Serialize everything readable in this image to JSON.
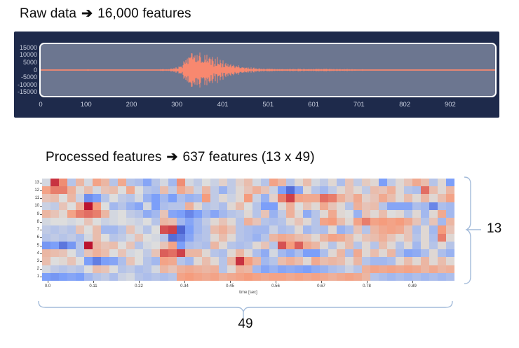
{
  "raw_section": {
    "title_prefix": "Raw data",
    "arrow": "➔",
    "title_suffix": "16,000 features"
  },
  "processed_section": {
    "title_prefix": "Processed features",
    "arrow": "➔",
    "title_suffix": "637 features (13 x 49)"
  },
  "annotations": {
    "rows_count_label": "13",
    "cols_count_label": "49",
    "brace_color": "#a3bbda"
  },
  "chart_data": [
    {
      "type": "line",
      "name": "raw-audio-waveform",
      "x_ticks": [
        0,
        100,
        200,
        300,
        401,
        501,
        601,
        701,
        802,
        902
      ],
      "x_range": [
        0,
        1001
      ],
      "y_ticks": [
        15000,
        10000,
        5000,
        0,
        -5000,
        -10000,
        -15000
      ],
      "y_range": [
        -17500,
        17500
      ],
      "line_color": "#f8886f",
      "plot_bg": "#6c7690",
      "panel_bg": "#1e2a4b",
      "tick_text_color": "#c9cfdf",
      "grid": false,
      "envelope": [
        [
          0,
          260
        ],
        [
          60,
          260
        ],
        [
          95,
          300
        ],
        [
          103,
          750
        ],
        [
          112,
          320
        ],
        [
          160,
          280
        ],
        [
          210,
          300
        ],
        [
          258,
          340
        ],
        [
          270,
          900
        ],
        [
          280,
          520
        ],
        [
          292,
          1600
        ],
        [
          302,
          2400
        ],
        [
          312,
          4800
        ],
        [
          320,
          8500
        ],
        [
          328,
          14500
        ],
        [
          336,
          15800
        ],
        [
          344,
          12500
        ],
        [
          352,
          14500
        ],
        [
          360,
          10500
        ],
        [
          368,
          12000
        ],
        [
          378,
          9000
        ],
        [
          388,
          9800
        ],
        [
          398,
          7200
        ],
        [
          408,
          6200
        ],
        [
          418,
          5600
        ],
        [
          428,
          4300
        ],
        [
          438,
          3400
        ],
        [
          448,
          2700
        ],
        [
          458,
          2200
        ],
        [
          468,
          1800
        ],
        [
          478,
          1500
        ],
        [
          490,
          1250
        ],
        [
          505,
          1050
        ],
        [
          525,
          900
        ],
        [
          545,
          820
        ],
        [
          565,
          950
        ],
        [
          580,
          1150
        ],
        [
          592,
          850
        ],
        [
          605,
          1050
        ],
        [
          618,
          900
        ],
        [
          632,
          1020
        ],
        [
          648,
          820
        ],
        [
          662,
          940
        ],
        [
          678,
          720
        ],
        [
          695,
          620
        ],
        [
          715,
          520
        ],
        [
          735,
          470
        ],
        [
          760,
          430
        ],
        [
          800,
          410
        ],
        [
          850,
          390
        ],
        [
          900,
          390
        ],
        [
          950,
          370
        ],
        [
          1000,
          360
        ]
      ]
    },
    {
      "type": "heatmap",
      "name": "mfcc-features-heatmap",
      "colormap": "coolwarm",
      "xlabel": "time [sec]",
      "x_tick_labels": [
        "0.0",
        "0.11",
        "0.22",
        "0.34",
        "0.45",
        "0.56",
        "0.67",
        "0.78",
        "0.89"
      ],
      "row_labels_top_to_bottom": [
        "13",
        "12",
        "11",
        "10",
        "9",
        "8",
        "7",
        "6",
        "5",
        "4",
        "3",
        "2",
        "1"
      ],
      "value_range": [
        -1,
        1
      ],
      "values": [
        [
          -0.05,
          0.85,
          0.55,
          -0.2,
          0.3,
          -0.05,
          0.45,
          0.3,
          -0.2,
          0.4,
          -0.2,
          -0.25,
          -0.45,
          -0.2,
          -0.05,
          -0.3,
          0.55,
          -0.05,
          -0.15,
          0,
          -0.1,
          0.1,
          -0.15,
          0.1,
          0.25,
          -0.05,
          -0.2,
          0.45,
          0.3,
          -0.2,
          0.05,
          0.25,
          -0.05,
          -0.15,
          0.05,
          -0.25,
          0.2,
          -0.15,
          0.15,
          0.05,
          -0.5,
          -0.15,
          0.05,
          0.2,
          0.4,
          0.25,
          -0.2,
          0.05,
          -0.5
        ],
        [
          0.45,
          0.6,
          0.6,
          0.35,
          0.05,
          0.25,
          -0.05,
          0.2,
          0.25,
          0,
          0.4,
          0,
          -0.2,
          -0.25,
          0.25,
          -0.15,
          0.4,
          0.25,
          -0.1,
          0.3,
          -0.15,
          -0.35,
          -0.15,
          0.05,
          0.2,
          0.35,
          0.2,
          -0.1,
          -0.5,
          -0.8,
          -0.45,
          0.05,
          -0.2,
          -0.3,
          -0.15,
          0.05,
          0.2,
          0.05,
          -0.15,
          0.25,
          0.2,
          0.35,
          0.05,
          -0.2,
          -0.25,
          0.65,
          0.25,
          0.05,
          0.3
        ],
        [
          0.2,
          0.25,
          0,
          0.3,
          -0.1,
          -0.6,
          -0.5,
          -0.2,
          0,
          -0.15,
          -0.2,
          -0.05,
          -0.35,
          -0.5,
          -0.3,
          -0.5,
          -0.25,
          -0.35,
          -0.3,
          0.5,
          -0.15,
          0.05,
          -0.1,
          0.05,
          0.5,
          -0.1,
          -0.35,
          0.1,
          0.6,
          0.8,
          0.45,
          0.4,
          0.4,
          0.65,
          0.6,
          0.35,
          0.2,
          0.4,
          0.1,
          0.2,
          0.4,
          0.25,
          0.05,
          0.25,
          0.05,
          0.3,
          0.05,
          0.25,
          0.45
        ],
        [
          -0.1,
          -0.15,
          0.2,
          0,
          0.35,
          0.95,
          0.5,
          0,
          -0.3,
          -0.2,
          -0.35,
          -0.45,
          -0.05,
          -0.5,
          -0.25,
          -0.2,
          -0.2,
          0.35,
          0.05,
          -0.2,
          -0.15,
          -0.25,
          0.05,
          0.25,
          0,
          -0.2,
          -0.5,
          -0.5,
          0.05,
          0.35,
          0,
          0.2,
          0.05,
          0.4,
          0.2,
          0.05,
          -0.2,
          0.35,
          0.2,
          0.25,
          -0.2,
          -0.45,
          -0.45,
          -0.45,
          -0.25,
          -0.3,
          -0.65,
          -0.25,
          -0.3
        ],
        [
          0.3,
          0.2,
          0.05,
          0.45,
          0.6,
          0.65,
          0.6,
          0.3,
          -0.05,
          0,
          -0.15,
          -0.2,
          -0.4,
          -0.3,
          0.2,
          -0.45,
          -0.5,
          -0.65,
          -0.5,
          -0.3,
          -0.45,
          -0.3,
          -0.2,
          -0.15,
          0.05,
          -0.2,
          0.2,
          -0.35,
          -0.15,
          0.35,
          0.05,
          -0.4,
          -0.2,
          0.05,
          0.4,
          0.05,
          0,
          -0.35,
          0.2,
          0.05,
          0.25,
          0,
          0.05,
          -0.2,
          0.05,
          -0.3,
          0.05,
          0.4,
          -0.3
        ],
        [
          -0.05,
          0,
          0,
          -0.05,
          0,
          0.2,
          0,
          -0.1,
          -0.05,
          0,
          -0.05,
          -0.1,
          0,
          -0.2,
          0.3,
          0.25,
          -0.3,
          -0.45,
          -0.3,
          -0.15,
          0.05,
          0.2,
          0.05,
          -0.2,
          0.35,
          0.2,
          -0.2,
          -0.25,
          -0.2,
          0.05,
          0.2,
          0.05,
          -0.2,
          0.45,
          0.5,
          0.25,
          0.05,
          0.45,
          0.6,
          0.45,
          0.5,
          0.45,
          0.5,
          0.4,
          0.2,
          -0.2,
          0.2,
          -0.3,
          0.3
        ],
        [
          -0.15,
          -0.2,
          -0.15,
          -0.2,
          0.2,
          0,
          0.25,
          -0.3,
          -0.3,
          -0.2,
          0.2,
          -0.05,
          -0.2,
          0,
          0.75,
          0.8,
          -0.85,
          -0.5,
          -0.3,
          -0.2,
          0.25,
          0.35,
          0.2,
          -0.2,
          -0.25,
          -0.3,
          -0.3,
          -0.1,
          -0.25,
          -0.2,
          0.05,
          -0.3,
          -0.2,
          -0.25,
          0.05,
          -0.35,
          -0.25,
          0.2,
          -0.2,
          0.3,
          0.4,
          0.45,
          0.4,
          0.2,
          -0.25,
          0.05,
          -0.3,
          0.5,
          0.2
        ],
        [
          -0.2,
          -0.15,
          -0.2,
          -0.15,
          -0.25,
          -0.05,
          0.25,
          0,
          -0.2,
          -0.15,
          -0.05,
          0.2,
          0,
          -0.05,
          -0.2,
          -0.8,
          -0.7,
          -0.45,
          -0.25,
          -0.2,
          0.05,
          0.25,
          0.05,
          -0.2,
          -0.25,
          -0.35,
          -0.2,
          0.3,
          0.4,
          0.35,
          0.25,
          0.2,
          0.05,
          0.3,
          0.45,
          0.4,
          0.25,
          0.05,
          0.2,
          0.25,
          0.35,
          0.2,
          0.05,
          0.2,
          -0.2,
          0.05,
          -0.25,
          0.6,
          0.05
        ],
        [
          -0.55,
          -0.5,
          -0.75,
          -0.55,
          -0.2,
          0.95,
          0.3,
          0.2,
          0.25,
          0,
          0.2,
          -0.2,
          -0.05,
          0,
          0.2,
          0.45,
          -0.5,
          -0.25,
          -0.2,
          -0.25,
          0.3,
          0.05,
          -0.2,
          -0.25,
          -0.2,
          0.05,
          0.2,
          -0.2,
          0.75,
          0.5,
          0.7,
          0.4,
          0.3,
          0.05,
          -0.2,
          0.05,
          0.25,
          -0.2,
          0.05,
          -0.2,
          0.25,
          0.05,
          -0.2,
          0.05,
          -0.3,
          0.05,
          -0.2,
          0.05,
          -0.2
        ],
        [
          0.3,
          0.25,
          0.2,
          0,
          -0.2,
          0.2,
          0.35,
          0.25,
          0,
          0.2,
          -0.05,
          0,
          -0.15,
          0.2,
          0.7,
          0.65,
          0.8,
          0.3,
          0.3,
          0.05,
          -0.2,
          -0.25,
          0.05,
          0.3,
          0.05,
          -0.25,
          -0.4,
          -0.05,
          -0.3,
          -0.4,
          -0.25,
          -0.5,
          -0.5,
          -0.25,
          0.05,
          0.3,
          -0.25,
          0.4,
          0.05,
          0.25,
          0.05,
          0.3,
          -0.25,
          -0.45,
          -0.4,
          -0.25,
          0.05,
          -0.25,
          -0.35
        ],
        [
          0.25,
          0,
          0.05,
          0.2,
          0,
          -0.5,
          -0.7,
          -0.5,
          -0.45,
          -0.25,
          0.2,
          0,
          -0.2,
          -0.3,
          0.45,
          0.4,
          -0.2,
          -0.3,
          0.05,
          0.25,
          0.05,
          -0.2,
          0.3,
          0.85,
          0.5,
          0.3,
          -0.3,
          -0.2,
          0.25,
          0.35,
          0.25,
          0.05,
          0.4,
          0.25,
          0.3,
          0.25,
          0.05,
          0.3,
          -0.2,
          -0.3,
          -0.3,
          -0.25,
          0.05,
          0.25,
          0.05,
          0.3,
          0.05,
          0.25,
          0.05
        ],
        [
          -0.05,
          -0.15,
          -0.2,
          -0.15,
          -0.2,
          0,
          0.25,
          0.2,
          0,
          -0.2,
          -0.15,
          -0.25,
          -0.2,
          -0.05,
          0.3,
          0.2,
          0.35,
          0.4,
          0.35,
          0.3,
          0.35,
          -0.2,
          0.05,
          0.35,
          0.3,
          -0.3,
          -0.45,
          -0.35,
          -0.45,
          -0.4,
          -0.45,
          -0.5,
          -0.4,
          -0.35,
          -0.25,
          -0.2,
          -0.1,
          -0.2,
          0.35,
          0.45,
          0.4,
          0.45,
          0.4,
          0.45,
          0.4,
          0.3,
          0.4,
          0.3,
          0.35
        ],
        [
          -0.5,
          -0.55,
          -0.5,
          -0.45,
          -0.5,
          -0.3,
          -0.2,
          -0.15,
          -0.25,
          -0.1,
          -0.05,
          -0.2,
          -0.25,
          -0.2,
          -0.25,
          -0.2,
          0.45,
          0.5,
          0.45,
          0.4,
          0.45,
          0.35,
          0.4,
          0.45,
          0.5,
          0.45,
          0.4,
          0.45,
          0.45,
          0.4,
          0.45,
          0.4,
          0.45,
          0.4,
          0.35,
          0.4,
          0.45,
          0.4,
          0.3,
          -0.2,
          -0.25,
          -0.3,
          -0.25,
          -0.3,
          -0.25,
          -0.3,
          -0.25,
          -0.3,
          -0.25
        ]
      ]
    }
  ]
}
